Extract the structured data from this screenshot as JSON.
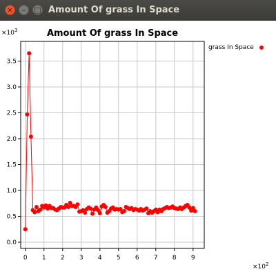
{
  "window": {
    "title": "Amount Of grass In Space",
    "buttons": {
      "close": "×",
      "minimize": "–",
      "maximize": "□"
    }
  },
  "chart_data": {
    "type": "line",
    "title": "Amount Of grass In Space",
    "xlabel": "",
    "ylabel": "",
    "x_multiplier_label": "×10",
    "x_multiplier_exp": "2",
    "y_multiplier_label": "×10",
    "y_multiplier_exp": "3",
    "xlim": [
      -0.25,
      9.6
    ],
    "ylim": [
      -0.12,
      3.88
    ],
    "x_ticks": [
      0,
      1,
      2,
      3,
      4,
      5,
      6,
      7,
      8,
      9
    ],
    "y_ticks": [
      0.0,
      0.5,
      1.0,
      1.5,
      2.0,
      2.5,
      3.0,
      3.5
    ],
    "x_tick_labels": [
      "0",
      "1",
      "2",
      "3",
      "4",
      "5",
      "6",
      "7",
      "8",
      "9"
    ],
    "y_tick_labels": [
      "0.0",
      "0.5",
      "1.0",
      "1.5",
      "2.0",
      "2.5",
      "3.0",
      "3.5"
    ],
    "grid": true,
    "legend_position": "right",
    "series": [
      {
        "name": "grass In Space",
        "color": "#ff0000",
        "x": [
          0,
          0.1,
          0.2,
          0.3,
          0.4,
          0.5,
          0.6,
          0.7,
          0.8,
          0.9,
          1.0,
          1.1,
          1.2,
          1.3,
          1.4,
          1.5,
          1.6,
          1.7,
          1.8,
          1.9,
          2.0,
          2.1,
          2.2,
          2.3,
          2.4,
          2.5,
          2.6,
          2.7,
          2.8,
          2.9,
          3.0,
          3.1,
          3.2,
          3.3,
          3.4,
          3.5,
          3.6,
          3.7,
          3.8,
          3.9,
          4.0,
          4.1,
          4.2,
          4.3,
          4.4,
          4.5,
          4.6,
          4.7,
          4.8,
          4.9,
          5.0,
          5.1,
          5.2,
          5.3,
          5.4,
          5.5,
          5.6,
          5.7,
          5.8,
          5.9,
          6.0,
          6.1,
          6.2,
          6.3,
          6.4,
          6.5,
          6.6,
          6.7,
          6.8,
          6.9,
          7.0,
          7.1,
          7.2,
          7.3,
          7.4,
          7.5,
          7.6,
          7.7,
          7.8,
          7.9,
          8.0,
          8.1,
          8.2,
          8.3,
          8.4,
          8.5,
          8.6,
          8.7,
          8.8,
          8.9,
          9.0,
          9.1
        ],
        "values": [
          0.25,
          2.47,
          3.65,
          2.04,
          0.62,
          0.58,
          0.68,
          0.6,
          0.63,
          0.7,
          0.67,
          0.71,
          0.65,
          0.7,
          0.66,
          0.66,
          0.63,
          0.62,
          0.65,
          0.68,
          0.67,
          0.67,
          0.72,
          0.68,
          0.76,
          0.7,
          0.7,
          0.68,
          0.73,
          0.59,
          0.6,
          0.62,
          0.57,
          0.64,
          0.67,
          0.65,
          0.55,
          0.63,
          0.67,
          0.62,
          0.56,
          0.69,
          0.72,
          0.68,
          0.57,
          0.6,
          0.65,
          0.67,
          0.63,
          0.64,
          0.63,
          0.64,
          0.58,
          0.6,
          0.68,
          0.66,
          0.64,
          0.66,
          0.62,
          0.64,
          0.63,
          0.61,
          0.64,
          0.61,
          0.63,
          0.65,
          0.56,
          0.6,
          0.57,
          0.6,
          0.63,
          0.58,
          0.63,
          0.6,
          0.64,
          0.66,
          0.68,
          0.66,
          0.67,
          0.69,
          0.66,
          0.65,
          0.64,
          0.67,
          0.64,
          0.67,
          0.7,
          0.72,
          0.67,
          0.61,
          0.66,
          0.6
        ]
      }
    ]
  }
}
